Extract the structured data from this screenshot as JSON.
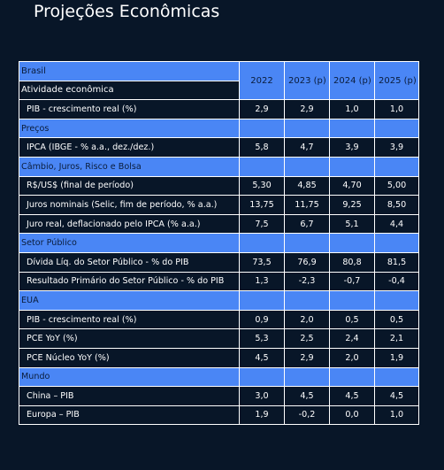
{
  "title": "Projeções Econômicas",
  "years": [
    "2022",
    "2023 (p)",
    "2024 (p)",
    "2025 (p)"
  ],
  "sections": [
    {
      "name": "Brasil",
      "subname": "Atividade econômica",
      "rows": [
        {
          "label": "PIB - crescimento real (%)",
          "values": [
            "2,9",
            "2,9",
            "1,0",
            "1,0"
          ]
        }
      ]
    },
    {
      "name": "Preços",
      "rows": [
        {
          "label": "IPCA (IBGE - % a.a., dez./dez.)",
          "values": [
            "5,8",
            "4,7",
            "3,9",
            "3,9"
          ]
        }
      ]
    },
    {
      "name": "Câmbio, Juros, Risco e Bolsa",
      "rows": [
        {
          "label": "R$/US$ (final de período)",
          "values": [
            "5,30",
            "4,85",
            "4,70",
            "5,00"
          ]
        },
        {
          "label": "Juros nominais (Selic, fim de período, % a.a.)",
          "values": [
            "13,75",
            "11,75",
            "9,25",
            "8,50"
          ]
        },
        {
          "label": "Juro real, deflacionado pelo IPCA (% a.a.)",
          "values": [
            "7,5",
            "6,7",
            "5,1",
            "4,4"
          ]
        }
      ]
    },
    {
      "name": "Setor Público",
      "rows": [
        {
          "label": "Dívida Líq. do Setor Público - % do PIB",
          "values": [
            "73,5",
            "76,9",
            "80,8",
            "81,5"
          ]
        },
        {
          "label": "Resultado Primário do Setor Público - % do PIB",
          "values": [
            "1,3",
            "-2,3",
            "-0,7",
            "-0,4"
          ]
        }
      ]
    },
    {
      "name": "EUA",
      "rows": [
        {
          "label": "PIB - crescimento real (%)",
          "values": [
            "0,9",
            "2,0",
            "0,5",
            "0,5"
          ]
        },
        {
          "label": "PCE YoY (%)",
          "values": [
            "5,3",
            "2,5",
            "2,4",
            "2,1"
          ]
        },
        {
          "label": "PCE Núcleo YoY (%)",
          "values": [
            "4,5",
            "2,9",
            "2,0",
            "1,9"
          ]
        }
      ]
    },
    {
      "name": "Mundo",
      "rows": [
        {
          "label": "China – PIB",
          "values": [
            "3,0",
            "4,5",
            "4,5",
            "4,5"
          ]
        },
        {
          "label": "Europa – PIB",
          "values": [
            "1,9",
            "-0,2",
            "0,0",
            "1,0"
          ]
        }
      ]
    }
  ]
}
